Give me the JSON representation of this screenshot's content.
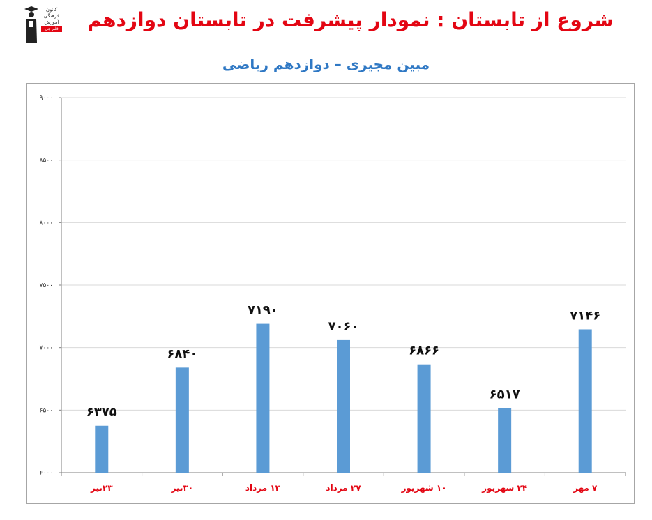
{
  "header": {
    "title": "شروع از تابستان : نمودار پیشرفت در تابستان دوازدهم",
    "subtitle": "مبین مجیری – دوازدهم ریاضی"
  },
  "logo": {
    "lines": [
      "کانون",
      "فرهنگی",
      "آموزش"
    ],
    "badge": "قلم چی"
  },
  "colors": {
    "title": "#e30613",
    "subtitle": "#2f78c4",
    "bar": "#5b9bd5",
    "xlabel": "#e30613",
    "grid": "#d9d9d9",
    "axis": "#808080"
  },
  "chart_data": {
    "type": "bar",
    "categories": [
      "۲۳تیر",
      "۳۰تیر",
      "۱۳ مرداد",
      "۲۷ مرداد",
      "۱۰ شهریور",
      "۲۴ شهریور",
      "۷ مهر"
    ],
    "values": [
      6375,
      6840,
      7190,
      7060,
      6866,
      6517,
      7146
    ],
    "data_labels": [
      "۶۳۷۵",
      "۶۸۴۰",
      "۷۱۹۰",
      "۷۰۶۰",
      "۶۸۶۶",
      "۶۵۱۷",
      "۷۱۴۶"
    ],
    "ylim": [
      6000,
      9000
    ],
    "yticks": [
      6000,
      6500,
      7000,
      7500,
      8000,
      8500,
      9000
    ],
    "ytick_labels": [
      "۶۰۰۰",
      "۶۵۰۰",
      "۷۰۰۰",
      "۷۵۰۰",
      "۸۰۰۰",
      "۸۵۰۰",
      "۹۰۰۰"
    ],
    "grid": true,
    "legend": "none"
  }
}
